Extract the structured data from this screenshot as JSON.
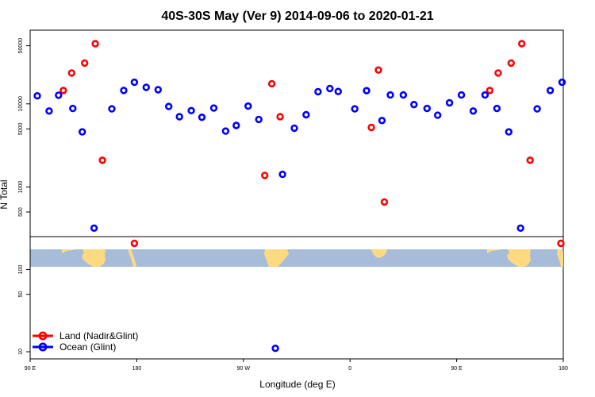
{
  "chart_data": {
    "type": "scatter",
    "title": "40S-30S May (Ver 9)   2014-09-06 to 2020-01-21",
    "xlabel": "Longitude (deg E)",
    "ylabel": "N Total",
    "x_scale": "wrapped longitude 90E to 180 (450 deg span)",
    "y_scale": "log",
    "xlim": [
      90,
      540
    ],
    "ylim": [
      7,
      90000
    ],
    "x_ticks": [
      {
        "value": 90,
        "label": "90 E"
      },
      {
        "value": 180,
        "label": "180"
      },
      {
        "value": 270,
        "label": "90 W"
      },
      {
        "value": 360,
        "label": "0"
      },
      {
        "value": 450,
        "label": "90 E"
      },
      {
        "value": 540,
        "label": "180"
      }
    ],
    "y_ticks": [
      {
        "value": 10,
        "label": "10"
      },
      {
        "value": 50,
        "label": "50"
      },
      {
        "value": 100,
        "label": "100"
      },
      {
        "value": 500,
        "label": "500"
      },
      {
        "value": 1000,
        "label": "1000"
      },
      {
        "value": 5000,
        "label": "5000"
      },
      {
        "value": 10000,
        "label": "10000"
      },
      {
        "value": 50000,
        "label": "50000"
      }
    ],
    "broken_axis_between": [
      150,
      400
    ],
    "map_strip": {
      "ocean_color": "#a7bcd8",
      "land_color": "#fdd981"
    },
    "grid": false,
    "legend_position": "bottom-left",
    "series": [
      {
        "name": "Land (Nadir&Glint)",
        "color": "#ff0000",
        "points": [
          [
            118,
            14500
          ],
          [
            125,
            23500
          ],
          [
            136,
            31000
          ],
          [
            145,
            53000
          ],
          [
            151,
            2100
          ],
          [
            178,
            210
          ],
          [
            288,
            1380
          ],
          [
            294,
            17500
          ],
          [
            301,
            7000
          ],
          [
            378,
            5200
          ],
          [
            384,
            25500
          ],
          [
            389,
            660
          ],
          [
            478,
            14500
          ],
          [
            485,
            23500
          ],
          [
            496,
            31000
          ],
          [
            505,
            53000
          ],
          [
            512,
            2100
          ],
          [
            538,
            210
          ]
        ]
      },
      {
        "name": "Ocean (Glint)",
        "color": "#0000ff",
        "points": [
          [
            96,
            12500
          ],
          [
            106,
            8200
          ],
          [
            114,
            12700
          ],
          [
            126,
            8800
          ],
          [
            134,
            4600
          ],
          [
            144,
            320
          ],
          [
            159,
            8700
          ],
          [
            169,
            14500
          ],
          [
            178,
            18200
          ],
          [
            188,
            15800
          ],
          [
            198,
            14800
          ],
          [
            207,
            9300
          ],
          [
            216,
            7000
          ],
          [
            226,
            8300
          ],
          [
            235,
            6900
          ],
          [
            245,
            8900
          ],
          [
            255,
            4700
          ],
          [
            264,
            5500
          ],
          [
            274,
            9400
          ],
          [
            283,
            6500
          ],
          [
            297,
            11
          ],
          [
            303,
            1420
          ],
          [
            313,
            5100
          ],
          [
            323,
            7400
          ],
          [
            333,
            14000
          ],
          [
            343,
            15300
          ],
          [
            350,
            14100
          ],
          [
            364,
            8700
          ],
          [
            374,
            14400
          ],
          [
            387,
            6300
          ],
          [
            394,
            12800
          ],
          [
            405,
            12800
          ],
          [
            414,
            9800
          ],
          [
            425,
            8800
          ],
          [
            434,
            7300
          ],
          [
            444,
            10300
          ],
          [
            454,
            12800
          ],
          [
            464,
            8200
          ],
          [
            474,
            12800
          ],
          [
            484,
            8800
          ],
          [
            494,
            4600
          ],
          [
            504,
            320
          ],
          [
            518,
            8700
          ],
          [
            529,
            14500
          ],
          [
            539,
            18200
          ]
        ]
      }
    ]
  }
}
